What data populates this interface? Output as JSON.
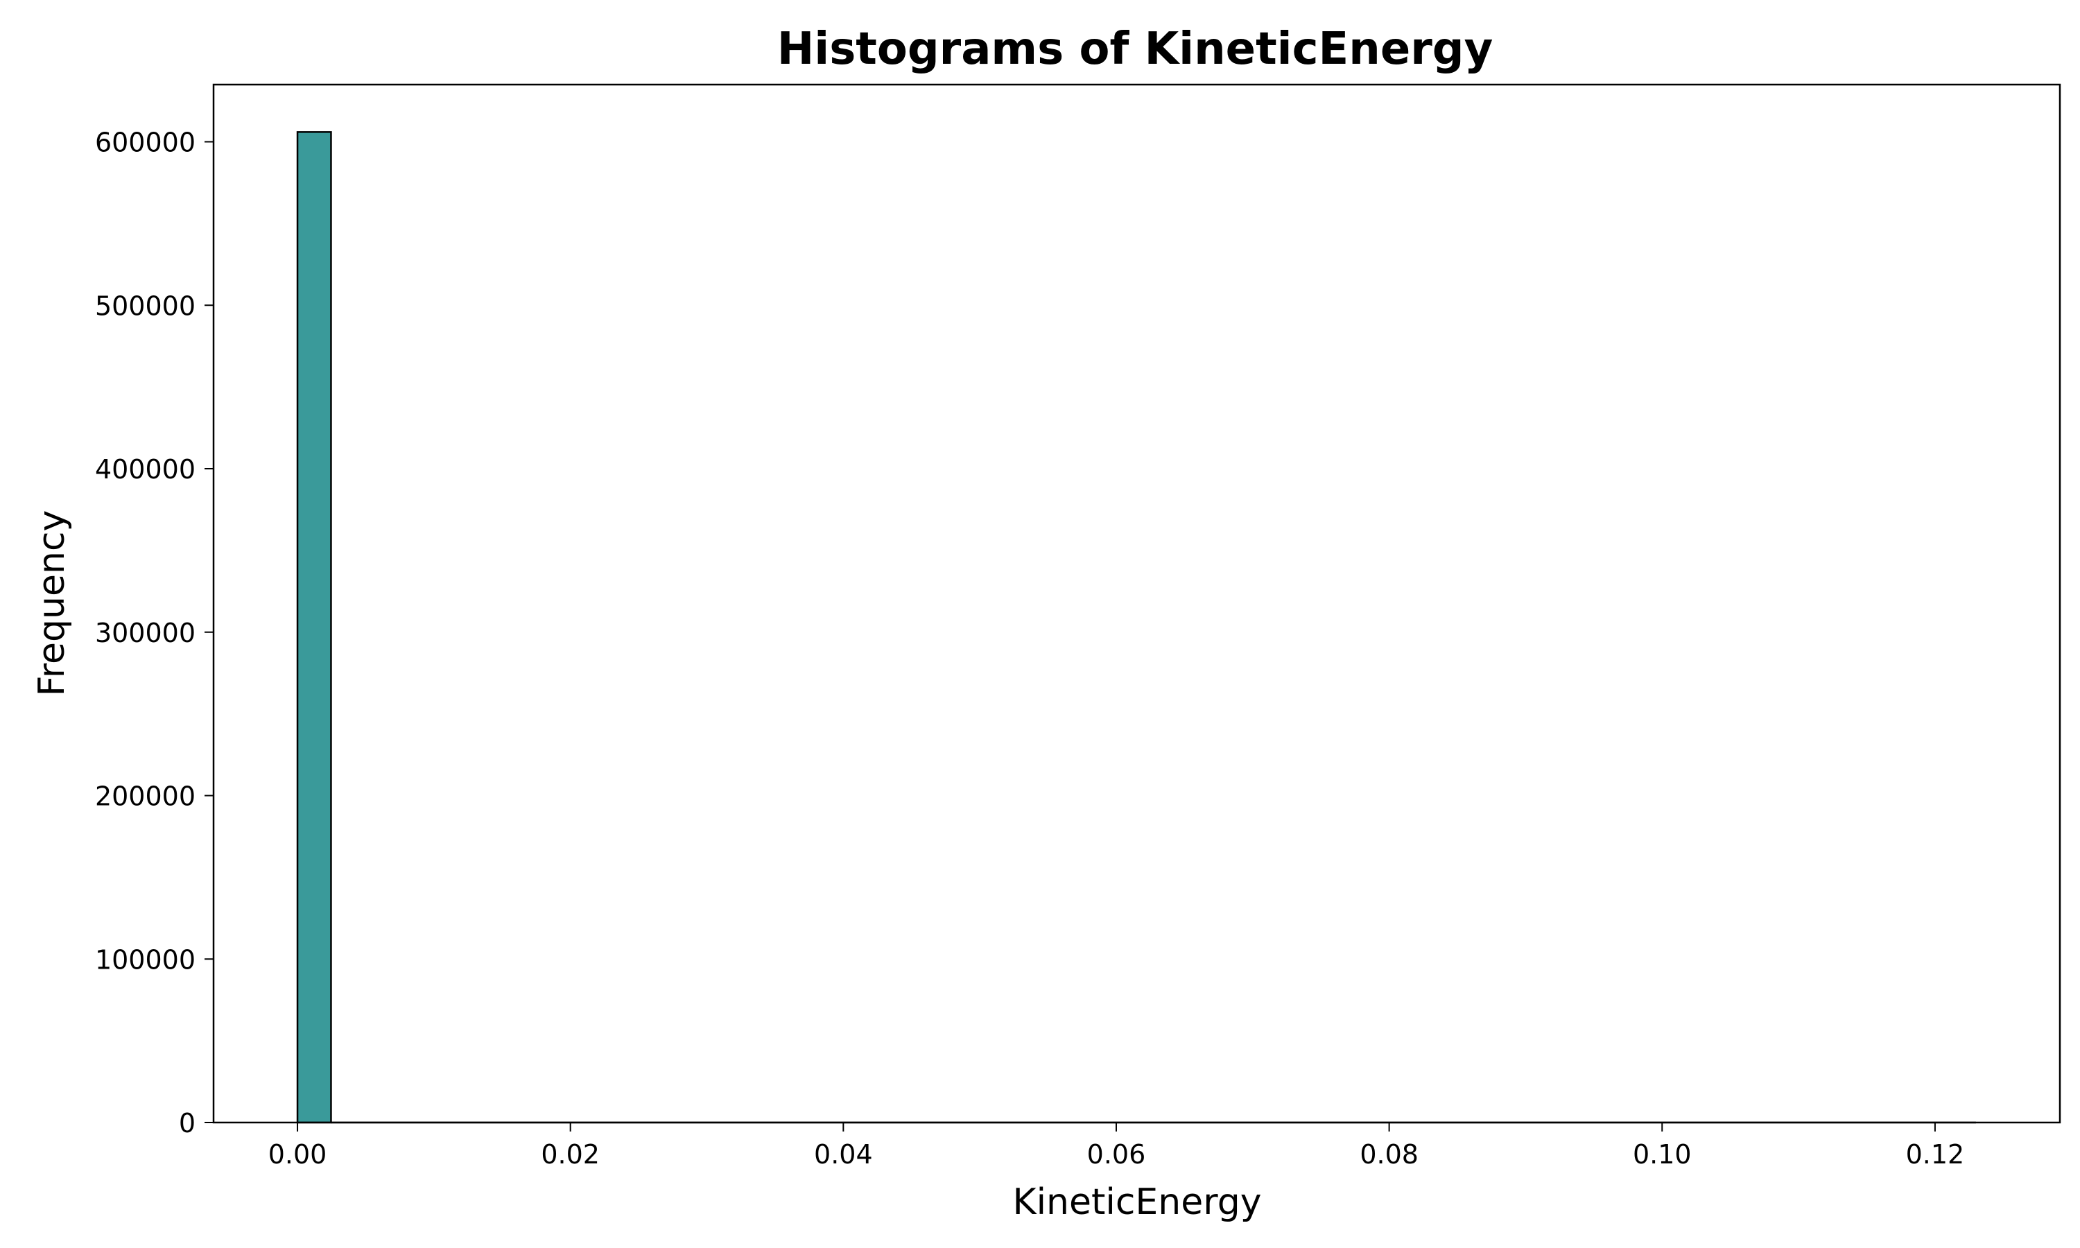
{
  "chart_data": {
    "type": "bar",
    "title": "Histograms of KineticEnergy",
    "xlabel": "KineticEnergy",
    "ylabel": "Frequency",
    "xlim": [
      -0.00615,
      0.12915
    ],
    "ylim": [
      0,
      635000
    ],
    "xticks": [
      {
        "value": 0.0,
        "label": "0.00"
      },
      {
        "value": 0.02,
        "label": "0.02"
      },
      {
        "value": 0.04,
        "label": "0.04"
      },
      {
        "value": 0.06,
        "label": "0.06"
      },
      {
        "value": 0.08,
        "label": "0.08"
      },
      {
        "value": 0.1,
        "label": "0.10"
      },
      {
        "value": 0.12,
        "label": "0.12"
      }
    ],
    "yticks": [
      {
        "value": 0,
        "label": "0"
      },
      {
        "value": 100000,
        "label": "100000"
      },
      {
        "value": 200000,
        "label": "200000"
      },
      {
        "value": 300000,
        "label": "300000"
      },
      {
        "value": 400000,
        "label": "400000"
      },
      {
        "value": 500000,
        "label": "500000"
      },
      {
        "value": 600000,
        "label": "600000"
      }
    ],
    "bins": [
      {
        "x0": 0.0,
        "x1": 0.00246,
        "count": 606000
      }
    ],
    "grid": false,
    "legend": "none",
    "bar_color": "#3a9a9a",
    "edge_color": "#000000"
  }
}
